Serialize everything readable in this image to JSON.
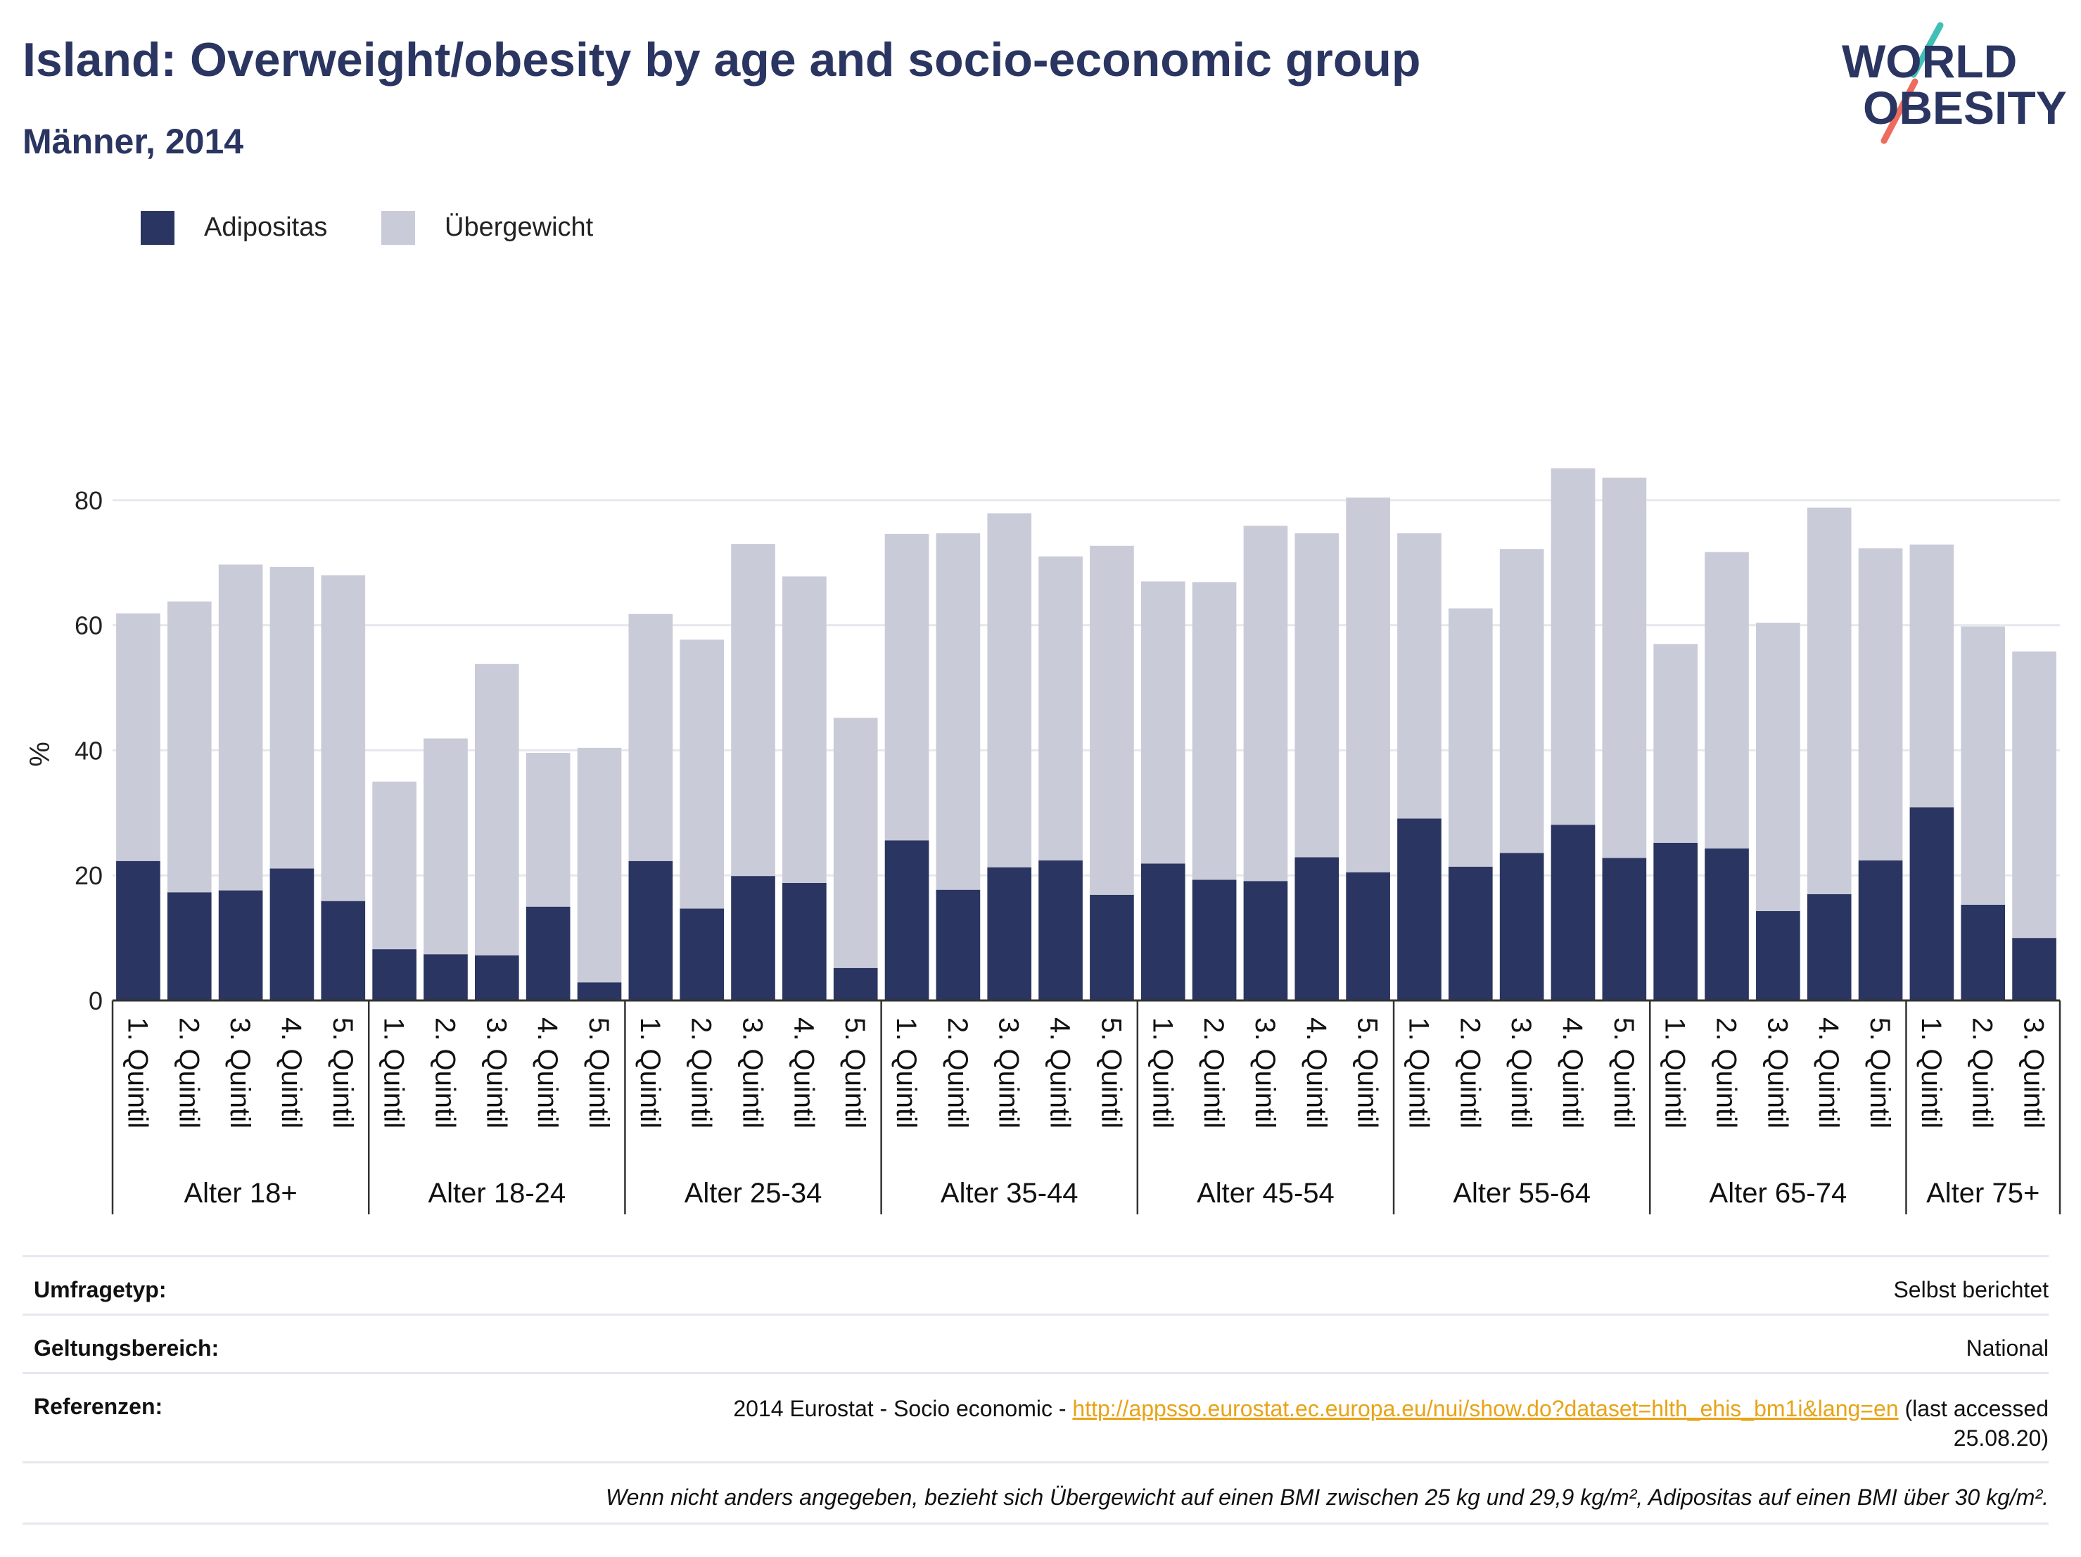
{
  "title": "Island: Overweight/obesity by age and socio-economic group",
  "subtitle": "Männer, 2014",
  "logo": {
    "line1": "WORLD",
    "line2": "OBESITY",
    "accent_teal": "#3fbfb6",
    "accent_coral": "#ee6b5d",
    "text_color": "#2a3561"
  },
  "legend": [
    {
      "label": "Adipositas",
      "color": "#2a3561"
    },
    {
      "label": "Übergewicht",
      "color": "#c9cbd8"
    }
  ],
  "chart_data": {
    "type": "bar",
    "stacked": true,
    "ylabel": "%",
    "ylim": [
      0,
      90
    ],
    "yticks": [
      0,
      20,
      40,
      60,
      80
    ],
    "grid": true,
    "legend_position": "top-left",
    "groups": [
      {
        "label": "Alter 18+",
        "categories": [
          "1. Quintil",
          "2. Quintil",
          "3. Quintil",
          "4. Quintil",
          "5. Quintil"
        ]
      },
      {
        "label": "Alter 18-24",
        "categories": [
          "1. Quintil",
          "2. Quintil",
          "3. Quintil",
          "4. Quintil",
          "5. Quintil"
        ]
      },
      {
        "label": "Alter 25-34",
        "categories": [
          "1. Quintil",
          "2. Quintil",
          "3. Quintil",
          "4. Quintil",
          "5. Quintil"
        ]
      },
      {
        "label": "Alter 35-44",
        "categories": [
          "1. Quintil",
          "2. Quintil",
          "3. Quintil",
          "4. Quintil",
          "5. Quintil"
        ]
      },
      {
        "label": "Alter 45-54",
        "categories": [
          "1. Quintil",
          "2. Quintil",
          "3. Quintil",
          "4. Quintil",
          "5. Quintil"
        ]
      },
      {
        "label": "Alter 55-64",
        "categories": [
          "1. Quintil",
          "2. Quintil",
          "3. Quintil",
          "4. Quintil",
          "5. Quintil"
        ]
      },
      {
        "label": "Alter 65-74",
        "categories": [
          "1. Quintil",
          "2. Quintil",
          "3. Quintil",
          "4. Quintil",
          "5. Quintil"
        ]
      },
      {
        "label": "Alter 75+",
        "categories": [
          "1. Quintil",
          "2. Quintil",
          "3. Quintil"
        ]
      }
    ],
    "series": [
      {
        "name": "Adipositas",
        "color": "#2a3561",
        "values": [
          22.3,
          17.3,
          17.6,
          21.1,
          15.9,
          8.2,
          7.4,
          7.2,
          15.0,
          2.9,
          22.3,
          14.7,
          19.9,
          18.8,
          5.2,
          25.6,
          17.7,
          21.3,
          22.4,
          16.9,
          21.9,
          19.3,
          19.1,
          22.9,
          20.5,
          29.1,
          21.4,
          23.6,
          28.1,
          22.8,
          25.2,
          24.3,
          14.3,
          17.0,
          22.4,
          30.9,
          15.3,
          10.0
        ]
      },
      {
        "name": "Übergewicht",
        "color": "#c9cbd8",
        "values": [
          39.6,
          46.5,
          52.1,
          48.2,
          52.1,
          26.8,
          34.5,
          46.6,
          24.6,
          37.5,
          39.5,
          43.0,
          53.1,
          49.0,
          40.0,
          49.0,
          57.0,
          56.6,
          48.6,
          55.8,
          45.1,
          47.6,
          56.8,
          51.8,
          59.9,
          45.6,
          41.3,
          48.6,
          57.0,
          60.8,
          31.8,
          47.4,
          46.1,
          61.8,
          49.9,
          42.0,
          44.5,
          45.8
        ]
      }
    ]
  },
  "footer": {
    "survey_type_label": "Umfragetyp:",
    "survey_type_value": "Selbst berichtet",
    "scope_label": "Geltungsbereich:",
    "scope_value": "National",
    "references_label": "Referenzen:",
    "references_prefix": "2014 Eurostat - Socio economic - ",
    "references_link": "http://appsso.eurostat.ec.europa.eu/nui/show.do?dataset=hlth_ehis_bm1i&lang=en",
    "references_suffix_1": " (last accessed",
    "references_suffix_2": "25.08.20)",
    "note": "Wenn nicht anders angegeben, bezieht sich Übergewicht auf einen BMI zwischen 25 kg und 29,9 kg/m², Adipositas auf einen BMI über 30 kg/m²."
  }
}
